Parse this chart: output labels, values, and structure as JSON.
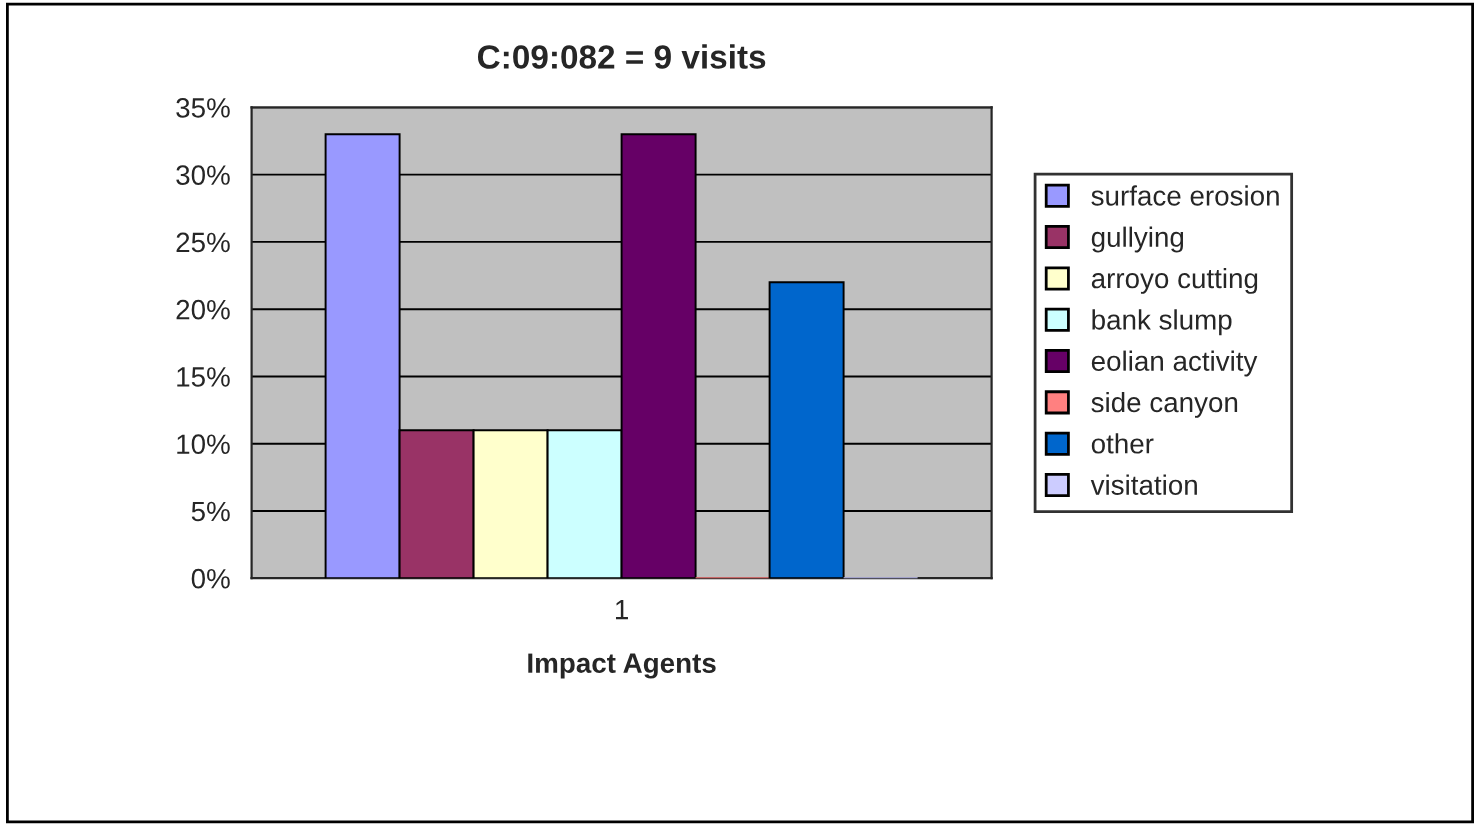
{
  "chart_data": {
    "type": "bar",
    "title": "C:09:082 = 9 visits",
    "xlabel": "Impact Agents",
    "categories": [
      "1"
    ],
    "series": [
      {
        "name": "surface erosion",
        "color": "#9999ff",
        "values": [
          33
        ]
      },
      {
        "name": "gullying",
        "color": "#993366",
        "values": [
          11
        ]
      },
      {
        "name": "arroyo cutting",
        "color": "#ffffcc",
        "values": [
          11
        ]
      },
      {
        "name": "bank slump",
        "color": "#ccffff",
        "values": [
          11
        ]
      },
      {
        "name": "eolian activity",
        "color": "#660066",
        "values": [
          33
        ]
      },
      {
        "name": "side canyon",
        "color": "#ff8080",
        "values": [
          0
        ]
      },
      {
        "name": "other",
        "color": "#0066cc",
        "values": [
          22
        ]
      },
      {
        "name": "visitation",
        "color": "#ccccff",
        "values": [
          0
        ]
      }
    ],
    "ylim": [
      0,
      35
    ],
    "yticks": [
      {
        "value": 0,
        "label": "0%"
      },
      {
        "value": 5,
        "label": "5%"
      },
      {
        "value": 10,
        "label": "10%"
      },
      {
        "value": 15,
        "label": "15%"
      },
      {
        "value": 20,
        "label": "20%"
      },
      {
        "value": 25,
        "label": "25%"
      },
      {
        "value": 30,
        "label": "30%"
      },
      {
        "value": 35,
        "label": "35%"
      }
    ],
    "grid": "y",
    "legend": "right"
  }
}
